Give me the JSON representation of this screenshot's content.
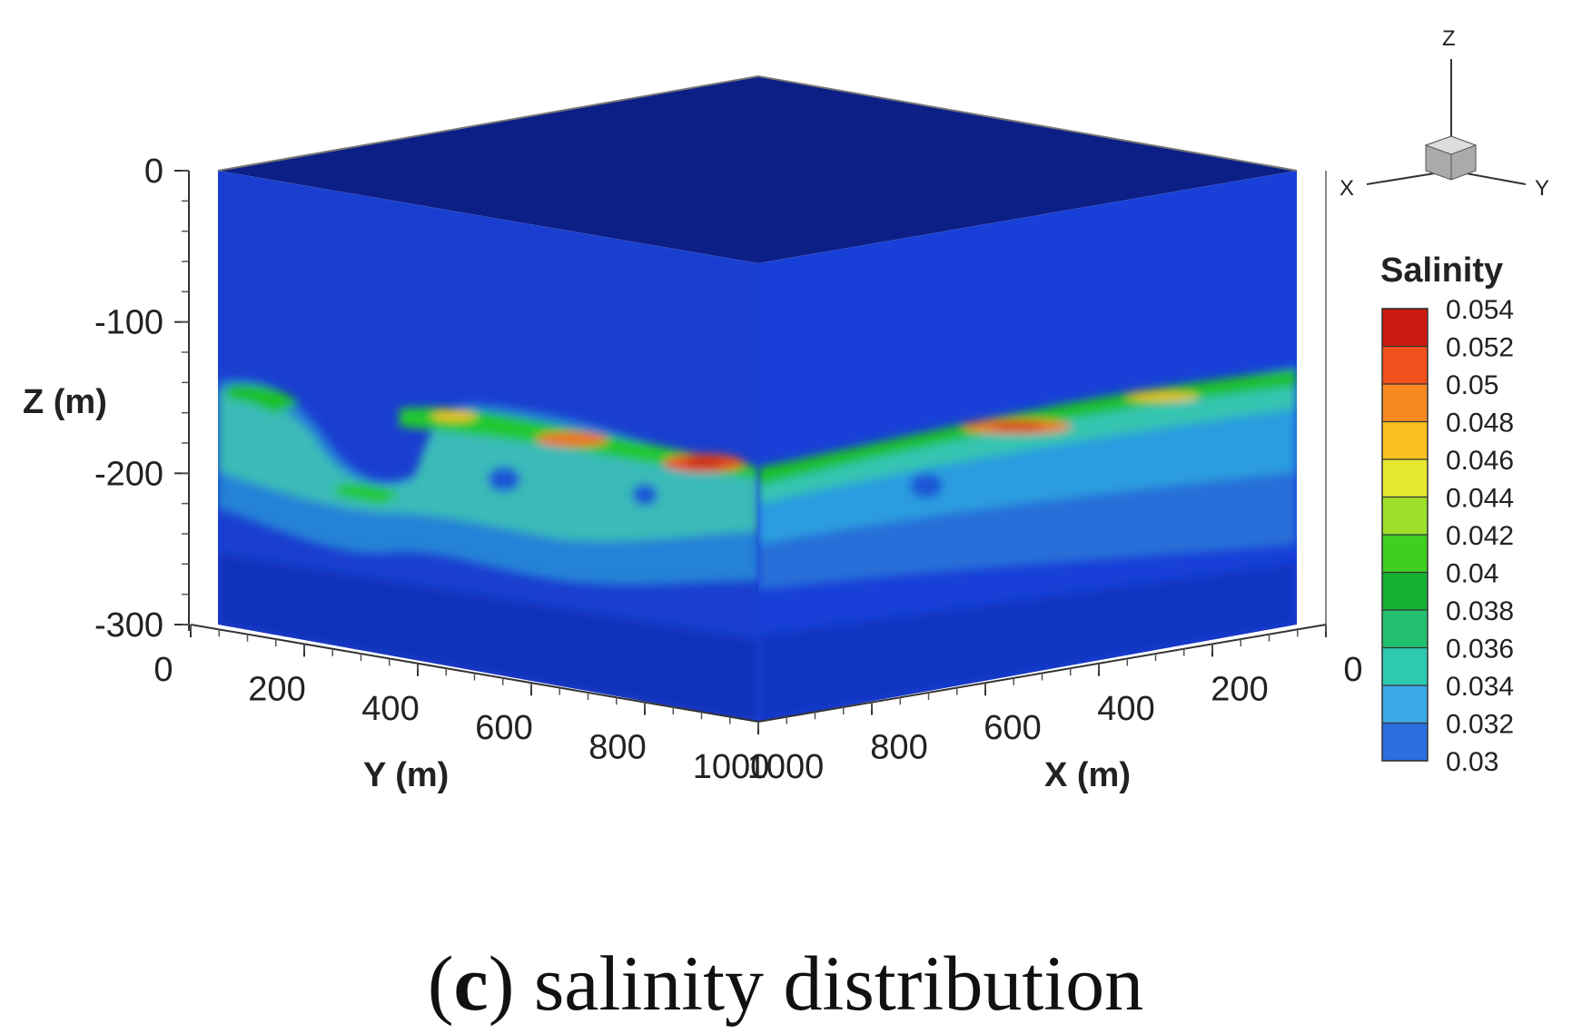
{
  "chart_data": {
    "type": "heatmap",
    "variable": "Salinity",
    "z_axis": {
      "label": "Z (m)",
      "ticks": [
        0,
        -100,
        -200,
        -300
      ],
      "range": [
        -300,
        0
      ]
    },
    "y_axis": {
      "label": "Y (m)",
      "ticks": [
        0,
        200,
        400,
        600,
        800,
        1000
      ],
      "range": [
        0,
        1000
      ]
    },
    "x_axis": {
      "label": "X (m)",
      "ticks": [
        0,
        200,
        400,
        600,
        800,
        1000
      ],
      "range": [
        0,
        1000
      ]
    },
    "colorbar": {
      "title": "Salinity",
      "levels": [
        0.054,
        0.052,
        0.05,
        0.048,
        0.046,
        0.044,
        0.042,
        0.04,
        0.038,
        0.036,
        0.034,
        0.032,
        0.03
      ],
      "colors": [
        "#cc1a10",
        "#f0501c",
        "#f88a20",
        "#f8c020",
        "#e6e830",
        "#9ee02a",
        "#3ecf22",
        "#14b032",
        "#22c070",
        "#2ecab0",
        "#3aa8e4",
        "#2a6ee0",
        "#1432c8"
      ]
    },
    "orientation_axes": {
      "z": "Z",
      "x": "X",
      "y": "Y"
    },
    "grid": false
  },
  "caption": {
    "prefix": "(",
    "letter": "c",
    "suffix": ") salinity distribution"
  }
}
